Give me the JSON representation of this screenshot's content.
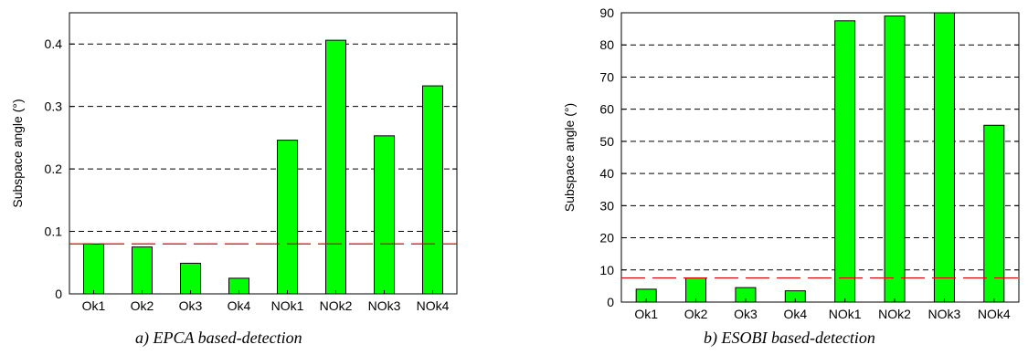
{
  "charts": [
    {
      "caption": "a) EPCA based-detection",
      "chart_data": {
        "type": "bar",
        "categories": [
          "Ok1",
          "Ok2",
          "Ok3",
          "Ok4",
          "NOk1",
          "NOk2",
          "NOk3",
          "NOk4"
        ],
        "values": [
          0.08,
          0.075,
          0.049,
          0.025,
          0.246,
          0.406,
          0.253,
          0.333
        ],
        "ylabel": "Subspace angle (°)",
        "xlabel": "",
        "ylim": [
          0,
          0.45
        ],
        "yticks": [
          0,
          0.1,
          0.2,
          0.3,
          0.4
        ],
        "ytick_labels": [
          "0",
          "0.1",
          "0.2",
          "0.3",
          "0.4"
        ],
        "grid": "horizontal dashed",
        "threshold": 0.08,
        "bar_color": "#00ff00",
        "threshold_color": "#e00000"
      }
    },
    {
      "caption": "b) ESOBI based-detection",
      "chart_data": {
        "type": "bar",
        "categories": [
          "Ok1",
          "Ok2",
          "Ok3",
          "Ok4",
          "NOk1",
          "NOk2",
          "NOk3",
          "NOk4"
        ],
        "values": [
          4,
          7.5,
          4.5,
          3.5,
          87.5,
          89,
          90,
          55
        ],
        "ylabel": "Subspace angle (°)",
        "xlabel": "",
        "ylim": [
          0,
          90
        ],
        "yticks": [
          0,
          10,
          20,
          30,
          40,
          50,
          60,
          70,
          80,
          90
        ],
        "ytick_labels": [
          "0",
          "10",
          "20",
          "30",
          "40",
          "50",
          "60",
          "70",
          "80",
          "90"
        ],
        "grid": "horizontal dashed",
        "threshold": 7.5,
        "bar_color": "#00ff00",
        "threshold_color": "#e00000"
      }
    }
  ]
}
